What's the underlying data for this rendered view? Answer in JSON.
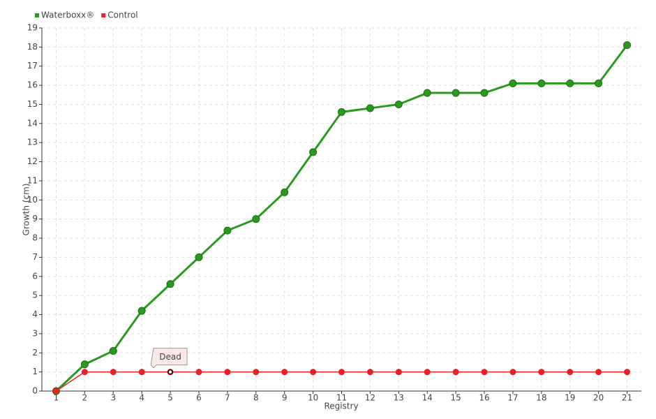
{
  "chart_data": {
    "type": "line",
    "xlabel": "Registry",
    "ylabel": "Growth (cm)",
    "categories": [
      "1",
      "2",
      "3",
      "4",
      "5",
      "6",
      "7",
      "8",
      "9",
      "10",
      "11",
      "12",
      "13",
      "14",
      "15",
      "16",
      "17",
      "18",
      "19",
      "20",
      "21"
    ],
    "series": [
      {
        "name": "Waterboxx®",
        "color": "#2a9a1e",
        "values": [
          0,
          1.4,
          2.1,
          4.2,
          5.6,
          7.0,
          8.4,
          9.0,
          10.4,
          12.5,
          14.6,
          14.8,
          15.0,
          15.6,
          15.6,
          15.6,
          16.1,
          16.1,
          16.1,
          16.1,
          18.1
        ]
      },
      {
        "name": "Control",
        "color": "#e8202a",
        "values": [
          0,
          1,
          1,
          1,
          1,
          1,
          1,
          1,
          1,
          1,
          1,
          1,
          1,
          1,
          1,
          1,
          1,
          1,
          1,
          1,
          1
        ]
      }
    ],
    "annotations": [
      {
        "text": "Dead",
        "series": 1,
        "category": "5"
      }
    ],
    "ylim": [
      0,
      19
    ],
    "yticks": [
      0,
      1,
      2,
      3,
      4,
      5,
      6,
      7,
      8,
      9,
      10,
      11,
      12,
      13,
      14,
      15,
      16,
      17,
      18,
      19
    ],
    "grid": true,
    "legend": "top-left"
  }
}
